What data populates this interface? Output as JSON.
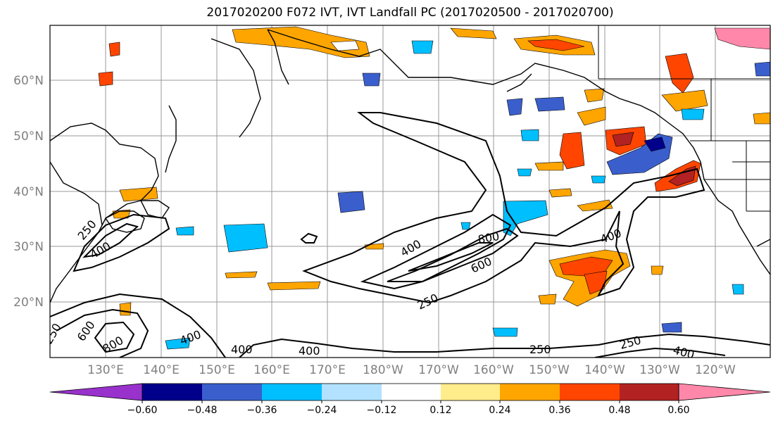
{
  "title": "2017020200 F072 IVT, IVT Landfall PC (2017020500 - 2017020700)",
  "lat_labels": [
    "60°N",
    "50°N",
    "40°N",
    "30°N",
    "20°N"
  ],
  "lon_labels": [
    "130°E",
    "140°E",
    "150°E",
    "160°E",
    "170°E",
    "180°W",
    "170°W",
    "160°W",
    "150°W",
    "140°W",
    "130°W",
    "120°W"
  ],
  "contour_levels": [
    "250",
    "400",
    "600",
    "800"
  ],
  "contour_labels": [
    "250",
    "400",
    "250",
    "600",
    "800",
    "400",
    "250",
    "400",
    "400",
    "400",
    "600",
    "800",
    "400",
    "250",
    "250",
    "400"
  ],
  "colorbar": {
    "ticks": [
      "−0.60",
      "−0.48",
      "−0.36",
      "−0.24",
      "−0.12",
      "0.12",
      "0.24",
      "0.36",
      "0.48",
      "0.60"
    ],
    "colors": [
      "#9932CC",
      "#00008B",
      "#3A5FCD",
      "#00BFFF",
      "#B2E2FF",
      "#FFFFFF",
      "#FFEC8B",
      "#FFA500",
      "#FF4500",
      "#B22222",
      "#FF88AA"
    ]
  }
}
